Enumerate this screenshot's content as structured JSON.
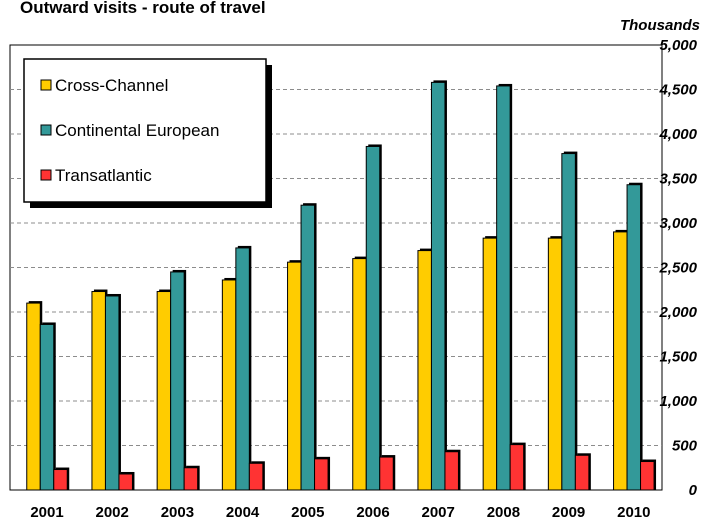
{
  "chart_data": {
    "type": "bar",
    "title": "Outward visits - route of travel",
    "unit_label": "Thousands",
    "categories": [
      "2001",
      "2002",
      "2003",
      "2004",
      "2005",
      "2006",
      "2007",
      "2008",
      "2009",
      "2010"
    ],
    "series": [
      {
        "name": "Cross-Channel",
        "color": "#FFCC00",
        "values": [
          2100,
          2230,
          2230,
          2360,
          2560,
          2600,
          2690,
          2830,
          2830,
          2900
        ]
      },
      {
        "name": "Continental European",
        "color": "#339999",
        "values": [
          1860,
          2180,
          2450,
          2720,
          3200,
          3860,
          4580,
          4540,
          3780,
          3430
        ]
      },
      {
        "name": "Transatlantic",
        "color": "#FF3333",
        "values": [
          230,
          180,
          250,
          300,
          350,
          370,
          430,
          510,
          390,
          320
        ]
      }
    ],
    "ylim": [
      0,
      5000
    ],
    "yticks": [
      "0",
      "500",
      "1,000",
      "1,500",
      "2,000",
      "2,500",
      "3,000",
      "3,500",
      "4,000",
      "4,500",
      "5,000"
    ],
    "ytick_values": [
      0,
      500,
      1000,
      1500,
      2000,
      2500,
      3000,
      3500,
      4000,
      4500,
      5000
    ],
    "grid": true,
    "legend_position": "top-left"
  }
}
